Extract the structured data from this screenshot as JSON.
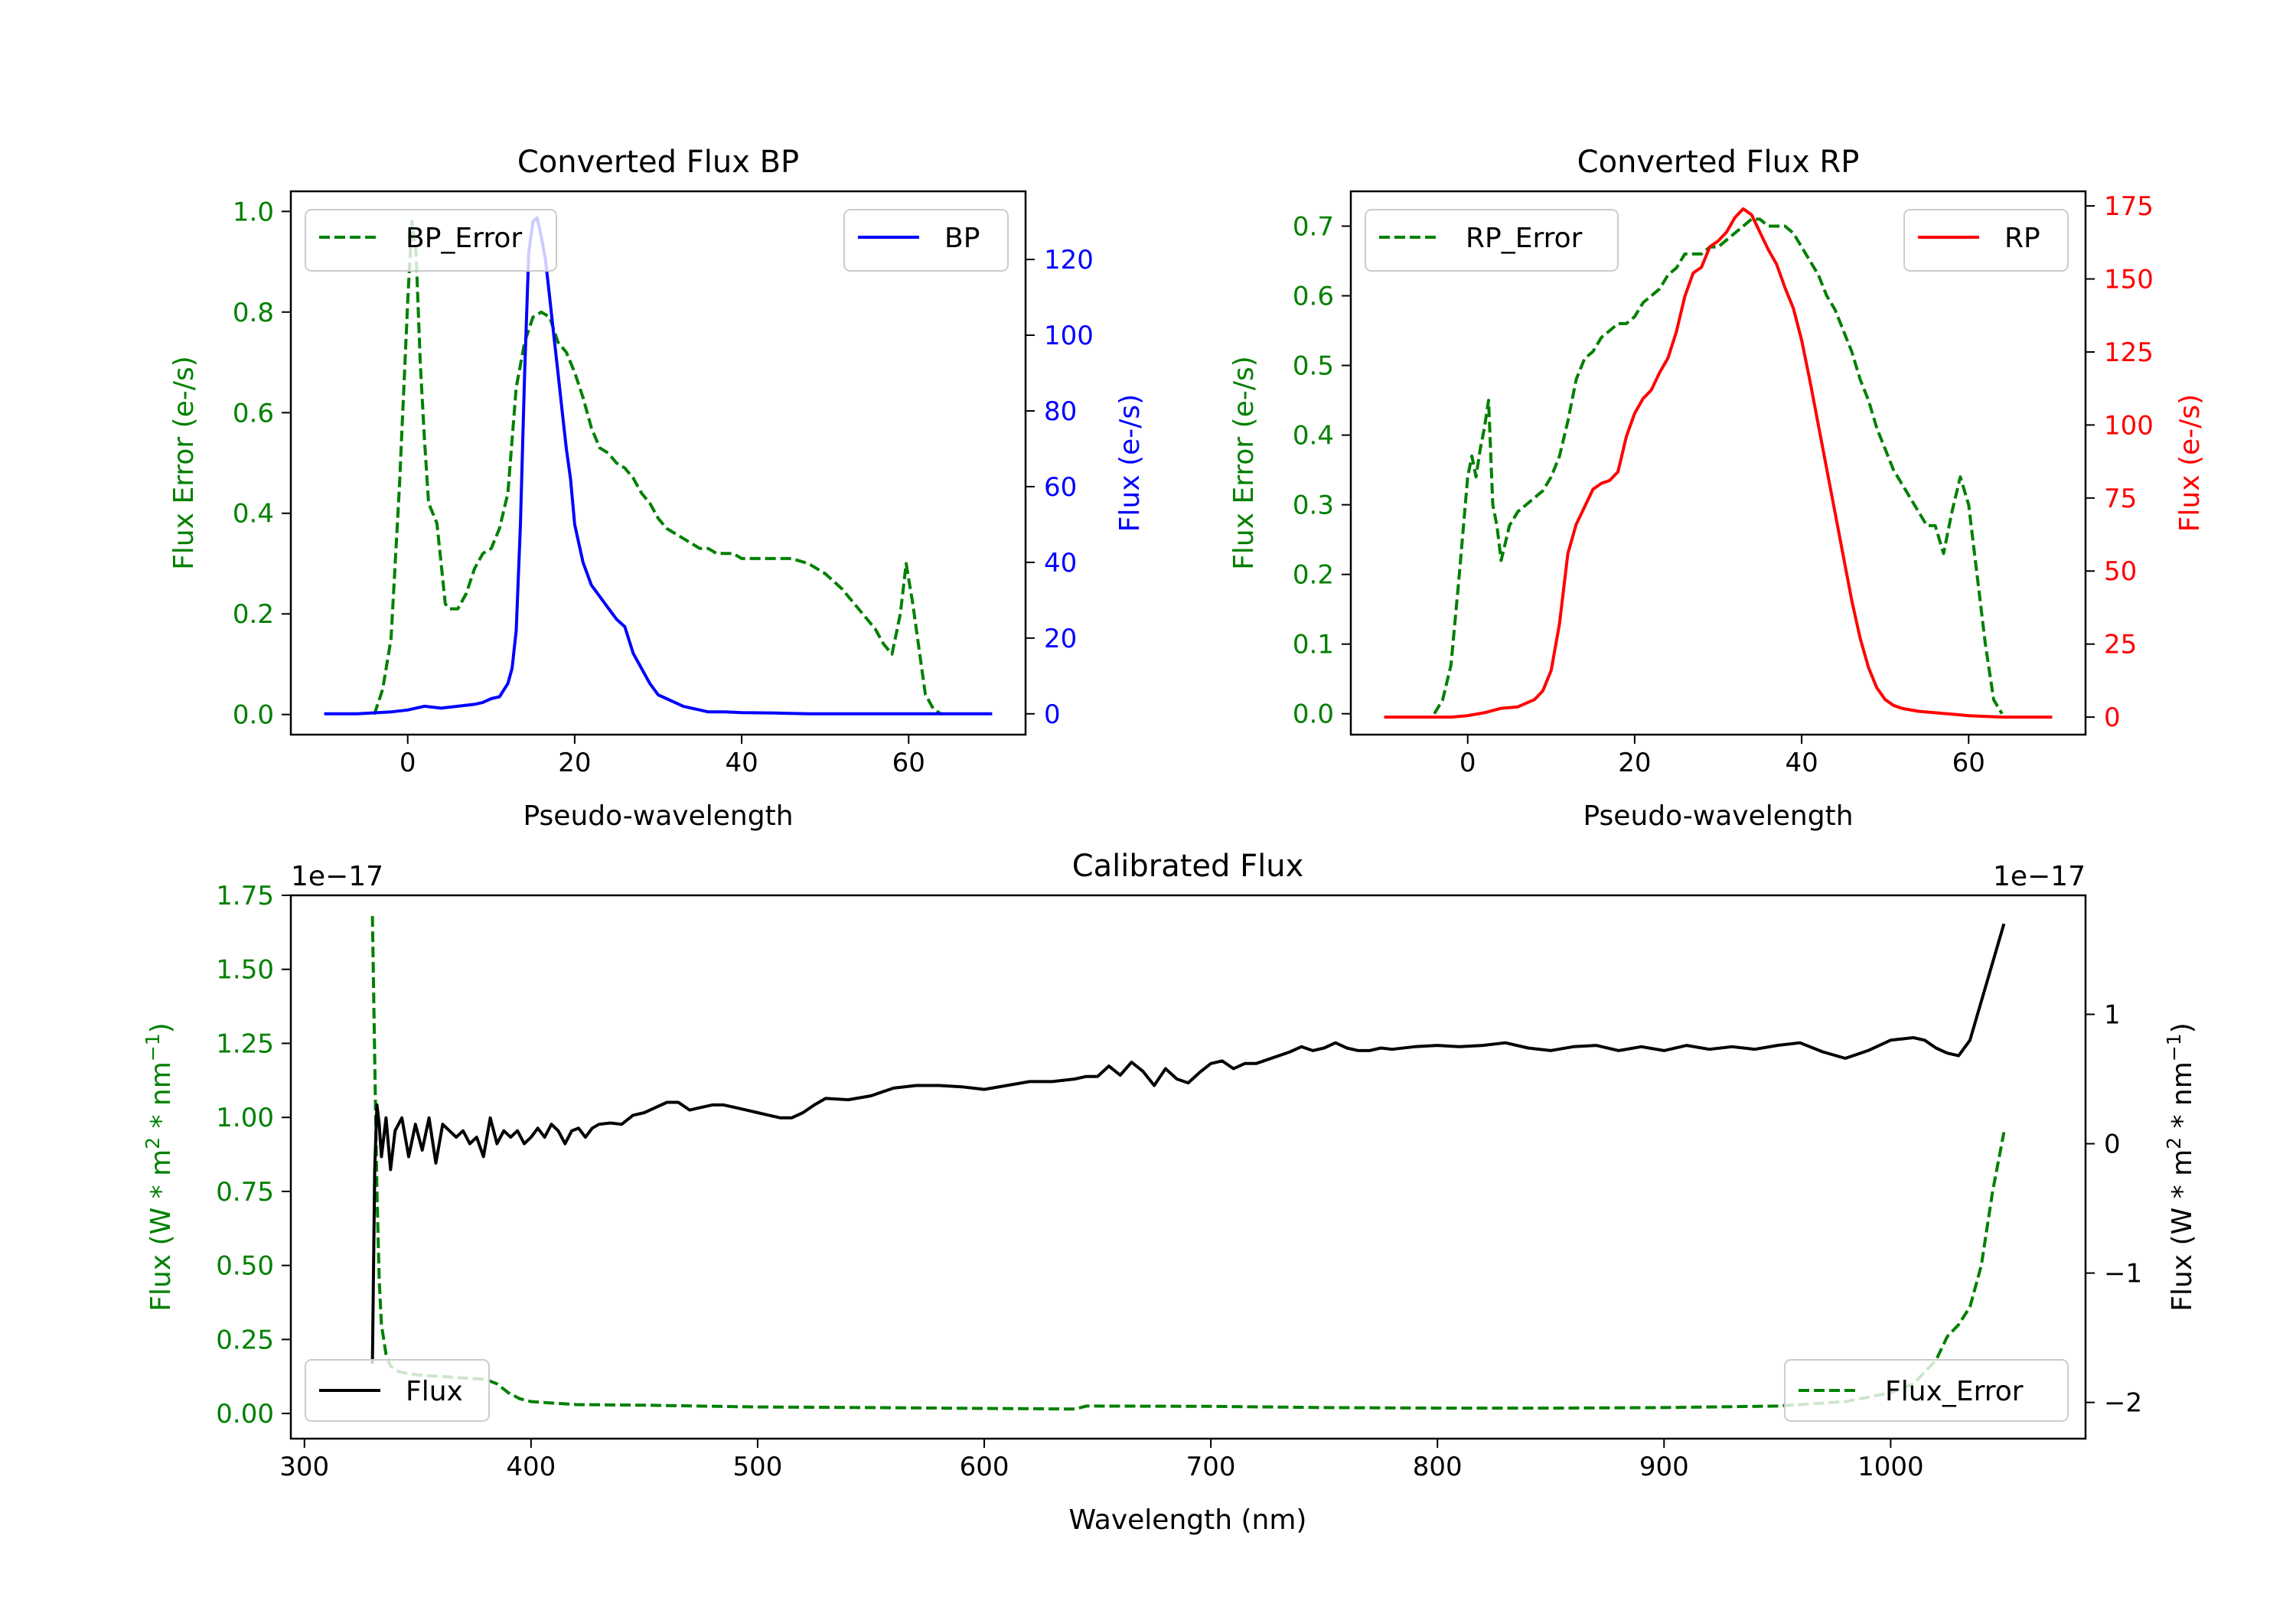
{
  "chart_data": [
    {
      "type": "line",
      "title": "Converted Flux BP",
      "xlabel": "Pseudo-wavelength",
      "ylabel_left": "Flux Error (e-/s)",
      "ylabel_right": "Flux (e-/s)",
      "xlim": [
        -14,
        74
      ],
      "ylim_left": [
        -0.04,
        1.04
      ],
      "ylim_right": [
        -5.5,
        138
      ],
      "x_ticks": [
        0,
        20,
        40,
        60
      ],
      "y_ticks_left": [
        0.0,
        0.2,
        0.4,
        0.6,
        0.8,
        1.0
      ],
      "y_ticks_right": [
        0,
        20,
        40,
        60,
        80,
        100,
        120
      ],
      "x_tick_labels": [
        "0",
        "20",
        "40",
        "60"
      ],
      "y_tick_labels_left": [
        "0.0",
        "0.2",
        "0.4",
        "0.6",
        "0.8",
        "1.0"
      ],
      "y_tick_labels_right": [
        "0",
        "20",
        "40",
        "60",
        "80",
        "100",
        "120"
      ],
      "left_color": "#008000",
      "right_color": "#0000ff",
      "series": [
        {
          "name": "BP_Error",
          "axis": "left",
          "style": "dashed",
          "color": "#008000",
          "x": [
            -4,
            -3,
            -2,
            -1,
            0,
            0.5,
            1,
            1.5,
            2,
            2.5,
            3,
            3.5,
            4,
            4.5,
            5,
            5.5,
            6,
            7,
            8,
            9,
            10,
            11,
            12,
            13,
            14,
            15,
            16,
            17,
            18,
            19,
            20,
            21,
            22,
            23,
            24,
            25,
            26,
            27,
            28,
            29,
            30,
            31,
            32,
            33,
            34,
            35,
            36,
            37,
            38,
            39,
            40,
            42,
            44,
            46,
            48,
            50,
            52,
            54,
            56,
            57,
            58,
            59,
            59.7,
            60.5,
            61.5,
            62,
            63,
            64
          ],
          "y": [
            0.0,
            0.05,
            0.15,
            0.45,
            0.82,
            0.98,
            0.92,
            0.7,
            0.55,
            0.42,
            0.4,
            0.38,
            0.3,
            0.22,
            0.21,
            0.21,
            0.21,
            0.24,
            0.29,
            0.32,
            0.33,
            0.37,
            0.44,
            0.65,
            0.74,
            0.79,
            0.8,
            0.79,
            0.74,
            0.72,
            0.68,
            0.63,
            0.57,
            0.53,
            0.52,
            0.5,
            0.49,
            0.47,
            0.44,
            0.42,
            0.39,
            0.37,
            0.36,
            0.35,
            0.34,
            0.33,
            0.33,
            0.32,
            0.32,
            0.32,
            0.31,
            0.31,
            0.31,
            0.31,
            0.3,
            0.28,
            0.25,
            0.21,
            0.17,
            0.14,
            0.12,
            0.2,
            0.3,
            0.22,
            0.1,
            0.04,
            0.01,
            0.0
          ]
        },
        {
          "name": "BP",
          "axis": "right",
          "style": "solid",
          "color": "#0000ff",
          "x": [
            -10,
            -6,
            -2,
            0,
            2,
            4,
            6,
            8,
            9,
            10,
            11,
            12,
            12.5,
            13,
            13.5,
            14,
            14.5,
            15,
            15.5,
            16,
            16.5,
            17,
            17.5,
            18,
            18.5,
            19,
            19.5,
            20,
            21,
            22,
            23,
            24,
            25,
            26,
            27,
            28,
            29,
            30,
            31,
            32,
            33,
            34,
            35,
            36,
            38,
            40,
            44,
            48,
            52,
            56,
            60,
            64,
            70
          ],
          "y": [
            0,
            0,
            0.5,
            1,
            2,
            1.5,
            2,
            2.5,
            3,
            4,
            4.5,
            8,
            12,
            22,
            50,
            90,
            122,
            130,
            131,
            126,
            120,
            110,
            100,
            90,
            80,
            70,
            62,
            50,
            40,
            34,
            31,
            28,
            25,
            23,
            16,
            12,
            8,
            5,
            4,
            3,
            2,
            1.5,
            1,
            0.5,
            0.5,
            0.3,
            0.2,
            0,
            0,
            0,
            0,
            0,
            0
          ]
        }
      ],
      "legend": [
        {
          "label": "BP_Error",
          "position": "upper-left"
        },
        {
          "label": "BP",
          "position": "upper-right"
        }
      ]
    },
    {
      "type": "line",
      "title": "Converted Flux RP",
      "xlabel": "Pseudo-wavelength",
      "ylabel_left": "Flux Error (e-/s)",
      "ylabel_right": "Flux (e-/s)",
      "xlim": [
        -14,
        74
      ],
      "ylim_left": [
        -0.03,
        0.75
      ],
      "ylim_right": [
        -6,
        180
      ],
      "x_ticks": [
        0,
        20,
        40,
        60
      ],
      "y_ticks_left": [
        0.0,
        0.1,
        0.2,
        0.3,
        0.4,
        0.5,
        0.6,
        0.7
      ],
      "y_ticks_right": [
        0,
        25,
        50,
        75,
        100,
        125,
        150,
        175
      ],
      "x_tick_labels": [
        "0",
        "20",
        "40",
        "60"
      ],
      "y_tick_labels_left": [
        "0.0",
        "0.1",
        "0.2",
        "0.3",
        "0.4",
        "0.5",
        "0.6",
        "0.7"
      ],
      "y_tick_labels_right": [
        "0",
        "25",
        "50",
        "75",
        "100",
        "125",
        "150",
        "175"
      ],
      "left_color": "#008000",
      "right_color": "#ff0000",
      "series": [
        {
          "name": "RP_Error",
          "axis": "left",
          "style": "dashed",
          "color": "#008000",
          "x": [
            -4,
            -3,
            -2,
            -1,
            0,
            0.5,
            1,
            1.5,
            2,
            2.5,
            3,
            3.5,
            4,
            5,
            6,
            7,
            8,
            9,
            10,
            11,
            12,
            13,
            14,
            15,
            16,
            17,
            18,
            19,
            20,
            21,
            22,
            23,
            24,
            25,
            26,
            27,
            28,
            29,
            30,
            31,
            32,
            33,
            34,
            35,
            36,
            37,
            38,
            39,
            40,
            41,
            42,
            43,
            44,
            45,
            46,
            47,
            48,
            49,
            50,
            51,
            52,
            53,
            54,
            55,
            56,
            57,
            58,
            59,
            60,
            61,
            62,
            63,
            64
          ],
          "y": [
            0.0,
            0.02,
            0.07,
            0.2,
            0.34,
            0.37,
            0.34,
            0.38,
            0.41,
            0.45,
            0.3,
            0.27,
            0.22,
            0.27,
            0.29,
            0.3,
            0.31,
            0.32,
            0.34,
            0.37,
            0.42,
            0.48,
            0.51,
            0.52,
            0.54,
            0.55,
            0.56,
            0.56,
            0.57,
            0.59,
            0.6,
            0.61,
            0.63,
            0.64,
            0.66,
            0.66,
            0.66,
            0.67,
            0.67,
            0.68,
            0.69,
            0.7,
            0.71,
            0.71,
            0.7,
            0.7,
            0.7,
            0.69,
            0.67,
            0.65,
            0.63,
            0.6,
            0.58,
            0.55,
            0.52,
            0.48,
            0.45,
            0.41,
            0.38,
            0.35,
            0.33,
            0.31,
            0.29,
            0.27,
            0.27,
            0.23,
            0.29,
            0.34,
            0.3,
            0.2,
            0.1,
            0.02,
            0.0
          ]
        },
        {
          "name": "RP",
          "axis": "right",
          "style": "solid",
          "color": "#ff0000",
          "x": [
            -10,
            -6,
            -2,
            0,
            2,
            4,
            6,
            8,
            9,
            10,
            11,
            12,
            13,
            14,
            15,
            16,
            17,
            18,
            19,
            20,
            21,
            22,
            23,
            24,
            25,
            26,
            27,
            28,
            29,
            30,
            31,
            32,
            33,
            34,
            35,
            36,
            37,
            38,
            39,
            40,
            41,
            42,
            43,
            44,
            45,
            46,
            47,
            48,
            49,
            50,
            51,
            52,
            53,
            54,
            56,
            58,
            60,
            64,
            70
          ],
          "y": [
            0,
            0,
            0,
            0.5,
            1.5,
            3,
            3.5,
            6,
            9,
            16,
            32,
            56,
            66,
            72,
            78,
            80,
            81,
            84,
            96,
            104,
            109,
            112,
            118,
            123,
            132,
            144,
            152,
            154,
            161,
            163,
            166,
            171,
            174,
            172,
            166,
            160,
            155,
            147,
            140,
            129,
            115,
            100,
            85,
            70,
            55,
            40,
            27,
            17,
            10,
            6,
            4,
            3,
            2.5,
            2,
            1.5,
            1,
            0.5,
            0,
            0
          ]
        }
      ],
      "legend": [
        {
          "label": "RP_Error",
          "position": "upper-left"
        },
        {
          "label": "RP",
          "position": "upper-right"
        }
      ]
    },
    {
      "type": "line",
      "title": "Calibrated Flux",
      "xlabel": "Wavelength (nm)",
      "ylabel_left": "Flux (W * m^2 * nm^-1)",
      "ylabel_right": "Flux (W * m^2 * nm^-1)",
      "offset_left": "1e−17",
      "offset_right": "1e−17",
      "xlim": [
        294,
        1086
      ],
      "ylim_left": [
        -0.085,
        1.75
      ],
      "ylim_right": [
        -2.28,
        1.92
      ],
      "x_ticks": [
        300,
        400,
        500,
        600,
        700,
        800,
        900,
        1000
      ],
      "y_ticks_left": [
        0.0,
        0.25,
        0.5,
        0.75,
        1.0,
        1.25,
        1.5,
        1.75
      ],
      "y_ticks_right": [
        -2,
        -1,
        0,
        1
      ],
      "x_tick_labels": [
        "300",
        "400",
        "500",
        "600",
        "700",
        "800",
        "900",
        "1000"
      ],
      "y_tick_labels_left": [
        "0.00",
        "0.25",
        "0.50",
        "0.75",
        "1.00",
        "1.25",
        "1.50",
        "1.75"
      ],
      "y_tick_labels_right": [
        "−2",
        "−1",
        "0",
        "1"
      ],
      "left_color": "#008000",
      "right_color": "#000000",
      "series": [
        {
          "name": "Flux_Error",
          "axis": "left",
          "style": "dashed",
          "color": "#008000",
          "x": [
            330,
            331,
            332,
            333,
            334,
            336,
            338,
            342,
            350,
            360,
            370,
            380,
            385,
            390,
            395,
            400,
            410,
            420,
            450,
            500,
            550,
            600,
            640,
            645,
            700,
            750,
            800,
            850,
            900,
            950,
            980,
            1000,
            1010,
            1020,
            1025,
            1030,
            1035,
            1040,
            1045,
            1050
          ],
          "y": [
            1.68,
            1.2,
            0.75,
            0.45,
            0.3,
            0.2,
            0.16,
            0.14,
            0.13,
            0.125,
            0.12,
            0.115,
            0.1,
            0.07,
            0.05,
            0.04,
            0.035,
            0.03,
            0.028,
            0.022,
            0.02,
            0.017,
            0.015,
            0.025,
            0.024,
            0.02,
            0.018,
            0.018,
            0.02,
            0.025,
            0.04,
            0.07,
            0.1,
            0.18,
            0.26,
            0.3,
            0.36,
            0.5,
            0.75,
            0.95
          ]
        },
        {
          "name": "Flux",
          "axis": "right",
          "style": "solid",
          "color": "#000000",
          "x": [
            330,
            331,
            332,
            333,
            334,
            336,
            338,
            340,
            343,
            346,
            349,
            352,
            355,
            358,
            361,
            364,
            367,
            370,
            373,
            376,
            379,
            382,
            385,
            388,
            391,
            394,
            397,
            400,
            403,
            406,
            409,
            412,
            415,
            418,
            421,
            424,
            427,
            430,
            435,
            440,
            445,
            450,
            455,
            460,
            465,
            470,
            475,
            480,
            485,
            490,
            495,
            500,
            505,
            510,
            515,
            520,
            525,
            530,
            540,
            550,
            560,
            570,
            580,
            590,
            600,
            610,
            620,
            630,
            640,
            645,
            650,
            655,
            660,
            665,
            670,
            675,
            680,
            685,
            690,
            695,
            700,
            705,
            710,
            715,
            720,
            725,
            730,
            735,
            740,
            745,
            750,
            755,
            760,
            765,
            770,
            775,
            780,
            790,
            800,
            810,
            820,
            830,
            840,
            850,
            860,
            870,
            880,
            890,
            900,
            910,
            920,
            930,
            940,
            950,
            960,
            970,
            980,
            990,
            1000,
            1010,
            1015,
            1020,
            1025,
            1030,
            1035,
            1040,
            1045,
            1050
          ],
          "y": [
            -1.7,
            -0.2,
            0.3,
            0.15,
            -0.1,
            0.2,
            -0.2,
            0.1,
            0.2,
            -0.1,
            0.15,
            -0.05,
            0.2,
            -0.15,
            0.15,
            0.1,
            0.05,
            0.1,
            0.0,
            0.05,
            -0.1,
            0.2,
            0.0,
            0.1,
            0.05,
            0.1,
            0.0,
            0.05,
            0.12,
            0.05,
            0.15,
            0.1,
            0.0,
            0.1,
            0.12,
            0.05,
            0.12,
            0.15,
            0.16,
            0.15,
            0.22,
            0.24,
            0.28,
            0.32,
            0.32,
            0.26,
            0.28,
            0.3,
            0.3,
            0.28,
            0.26,
            0.24,
            0.22,
            0.2,
            0.2,
            0.24,
            0.3,
            0.35,
            0.34,
            0.37,
            0.43,
            0.45,
            0.45,
            0.44,
            0.42,
            0.45,
            0.48,
            0.48,
            0.5,
            0.52,
            0.52,
            0.6,
            0.53,
            0.63,
            0.56,
            0.45,
            0.58,
            0.5,
            0.47,
            0.55,
            0.62,
            0.64,
            0.58,
            0.62,
            0.62,
            0.65,
            0.68,
            0.71,
            0.75,
            0.72,
            0.74,
            0.78,
            0.74,
            0.72,
            0.72,
            0.74,
            0.73,
            0.75,
            0.76,
            0.75,
            0.76,
            0.78,
            0.74,
            0.72,
            0.75,
            0.76,
            0.72,
            0.75,
            0.72,
            0.76,
            0.73,
            0.75,
            0.73,
            0.76,
            0.78,
            0.71,
            0.66,
            0.72,
            0.8,
            0.82,
            0.8,
            0.74,
            0.7,
            0.68,
            0.8,
            1.1,
            1.4,
            1.7
          ]
        }
      ],
      "legend": [
        {
          "label": "Flux",
          "position": "lower-left"
        },
        {
          "label": "Flux_Error",
          "position": "lower-right"
        }
      ]
    }
  ]
}
